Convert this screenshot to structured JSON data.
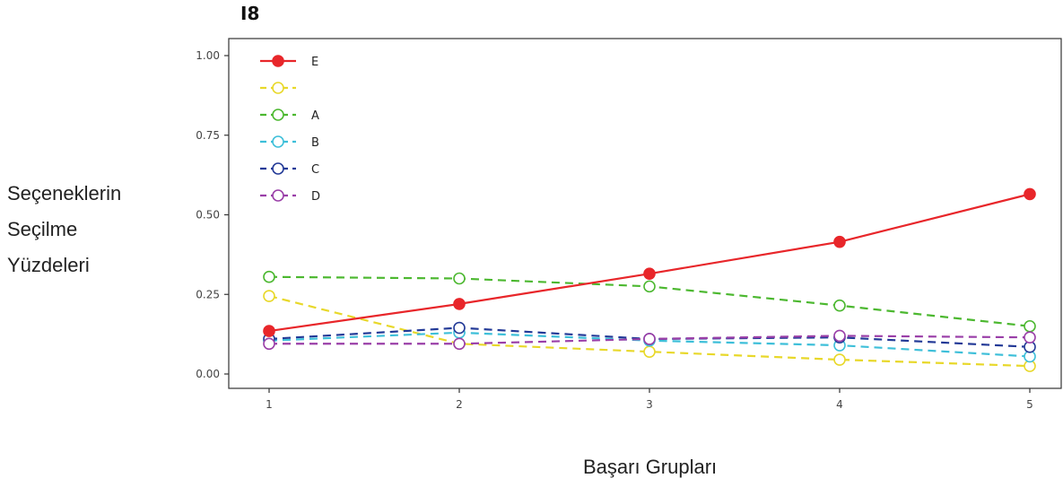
{
  "chart_data": {
    "type": "line",
    "title": "I8",
    "xlabel": "Başarı Grupları",
    "ylabel_lines": [
      "Seçeneklerin",
      "Seçilme",
      "Yüzdeleri"
    ],
    "x": [
      1,
      2,
      3,
      4,
      5
    ],
    "xticks": [
      "1",
      "2",
      "3",
      "4",
      "5"
    ],
    "yticks": [
      "0.00",
      "0.25",
      "0.50",
      "0.75",
      "1.00"
    ],
    "ylim": [
      0,
      1.0
    ],
    "grid": false,
    "legend_position": "top-left",
    "series": [
      {
        "name": "E",
        "color": "#e8262a",
        "style": "solid",
        "marker": "filled",
        "values": [
          0.135,
          0.22,
          0.315,
          0.415,
          0.565
        ]
      },
      {
        "name": "",
        "color": "#e8d82a",
        "style": "dashed",
        "marker": "open",
        "values": [
          0.245,
          0.095,
          0.07,
          0.045,
          0.025
        ]
      },
      {
        "name": "A",
        "color": "#4cb830",
        "style": "dashed",
        "marker": "open",
        "values": [
          0.305,
          0.3,
          0.275,
          0.215,
          0.15
        ]
      },
      {
        "name": "B",
        "color": "#3ebfd9",
        "style": "dashed",
        "marker": "open",
        "values": [
          0.105,
          0.13,
          0.105,
          0.09,
          0.055
        ]
      },
      {
        "name": "C",
        "color": "#233a97",
        "style": "dashed",
        "marker": "open",
        "values": [
          0.11,
          0.145,
          0.11,
          0.115,
          0.085
        ]
      },
      {
        "name": "D",
        "color": "#9a3fa8",
        "style": "dashed",
        "marker": "open",
        "values": [
          0.095,
          0.095,
          0.11,
          0.12,
          0.115
        ]
      }
    ]
  }
}
